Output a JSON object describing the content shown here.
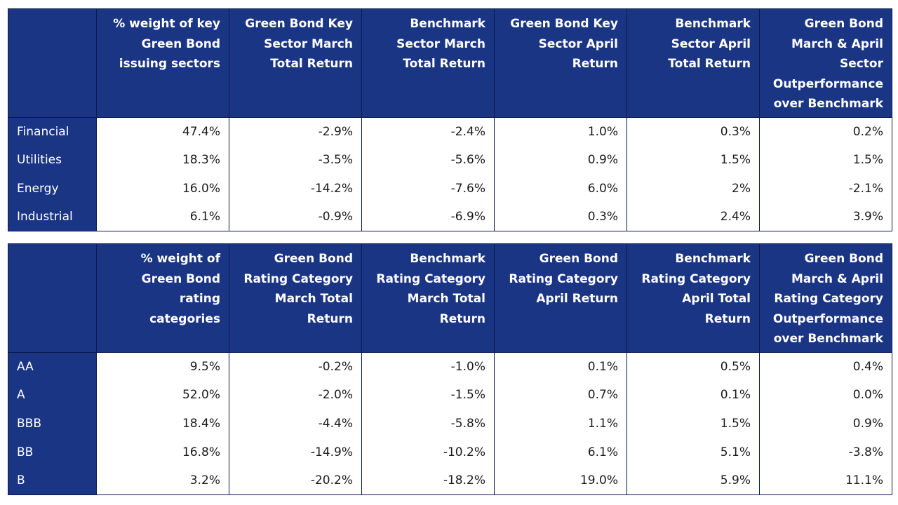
{
  "chart_data": [
    {
      "type": "table",
      "columns": [
        "",
        "% weight of key Green Bond issuing sectors",
        "Green Bond Key Sector March Total Return",
        "Benchmark Sector March Total Return",
        "Green Bond Key Sector April Return",
        "Benchmark Sector April Total Return",
        "Green Bond March & April Sector Outperformance over Benchmark"
      ],
      "rows": [
        [
          "Financial",
          "47.4%",
          "-2.9%",
          "-2.4%",
          "1.0%",
          "0.3%",
          "0.2%"
        ],
        [
          "Utilities",
          "18.3%",
          "-3.5%",
          "-5.6%",
          "0.9%",
          "1.5%",
          "1.5%"
        ],
        [
          "Energy",
          "16.0%",
          "-14.2%",
          "-7.6%",
          "6.0%",
          "2%",
          "-2.1%"
        ],
        [
          "Industrial",
          "6.1%",
          "-0.9%",
          "-6.9%",
          "0.3%",
          "2.4%",
          "3.9%"
        ]
      ]
    },
    {
      "type": "table",
      "columns": [
        "",
        "% weight of Green Bond rating categories",
        "Green Bond Rating Category March Total Return",
        "Benchmark Rating Category March Total Return",
        "Green Bond Rating Category April Return",
        "Benchmark Rating Category April Total Return",
        "Green Bond March & April Rating Category Outperformance over Benchmark"
      ],
      "rows": [
        [
          "AA",
          "9.5%",
          "-0.2%",
          "-1.0%",
          "0.1%",
          "0.5%",
          "0.4%"
        ],
        [
          "A",
          "52.0%",
          "-2.0%",
          "-1.5%",
          "0.7%",
          "0.1%",
          "0.0%"
        ],
        [
          "BBB",
          "18.4%",
          "-4.4%",
          "-5.8%",
          "1.1%",
          "1.5%",
          "0.9%"
        ],
        [
          "BB",
          "16.8%",
          "-14.9%",
          "-10.2%",
          "6.1%",
          "5.1%",
          "-3.8%"
        ],
        [
          "B",
          "3.2%",
          "-20.2%",
          "-18.2%",
          "19.0%",
          "5.9%",
          "11.1%"
        ]
      ]
    }
  ],
  "colors": {
    "header_bg": "#1b3585",
    "header_text": "#ffffff",
    "cell_text": "#1a1a1a",
    "border": "#0b1a4d"
  }
}
